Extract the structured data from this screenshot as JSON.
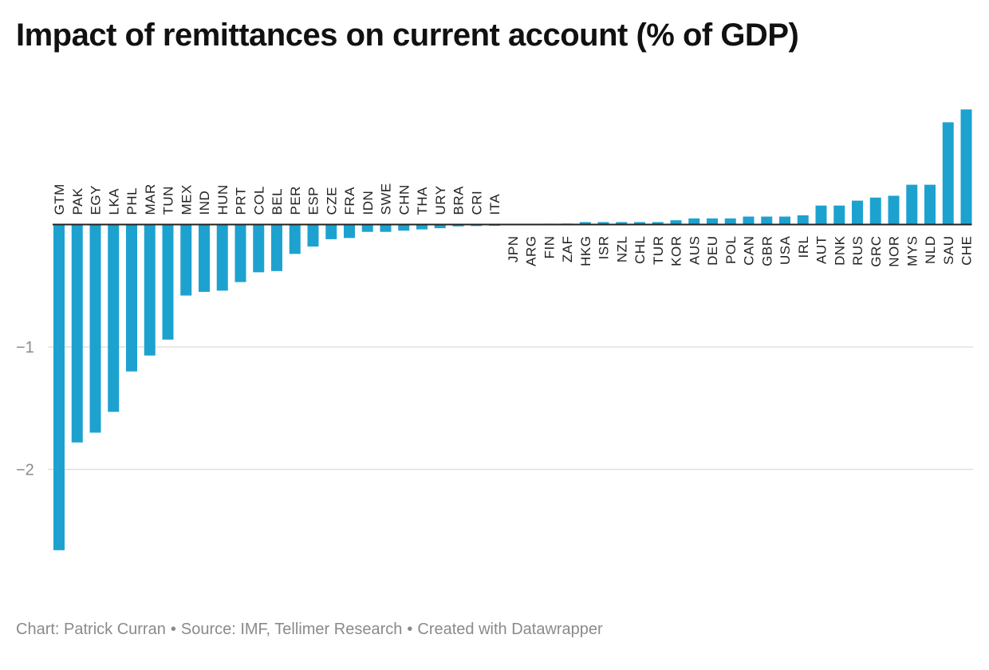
{
  "title": "Impact of remittances on current account (% of GDP)",
  "footer": {
    "chart_credit": "Chart: Patrick Curran",
    "source": "Source: IMF, Tellimer Research",
    "created_with": "Created with Datawrapper",
    "separator": "•"
  },
  "colors": {
    "bar": "#1da2d0",
    "gridline": "#e0e0e0",
    "zero_line": "#222222",
    "tick_label": "#8a8a8a",
    "category_label": "#222222"
  },
  "chart_data": {
    "type": "bar",
    "title": "Impact of remittances on current account (% of GDP)",
    "xlabel": "",
    "ylabel": "",
    "ylim": [
      -2.8,
      1.05
    ],
    "grid": true,
    "orientation": "vertical",
    "category_label_rotation": "vertical",
    "y_ticks": [
      {
        "value": -1,
        "label": "−1"
      },
      {
        "value": -2,
        "label": "−2"
      }
    ],
    "categories": [
      "GTM",
      "PAK",
      "EGY",
      "LKA",
      "PHL",
      "MAR",
      "TUN",
      "MEX",
      "IND",
      "HUN",
      "PRT",
      "COL",
      "BEL",
      "PER",
      "ESP",
      "CZE",
      "FRA",
      "IDN",
      "SWE",
      "CHN",
      "THA",
      "URY",
      "BRA",
      "CRI",
      "ITA",
      "JPN",
      "ARG",
      "FIN",
      "ZAF",
      "HKG",
      "ISR",
      "NZL",
      "CHL",
      "TUR",
      "KOR",
      "AUS",
      "DEU",
      "POL",
      "CAN",
      "GBR",
      "USA",
      "IRL",
      "AUT",
      "DNK",
      "RUS",
      "GRC",
      "NOR",
      "MYS",
      "NLD",
      "SAU",
      "CHE"
    ],
    "values": [
      -2.66,
      -1.78,
      -1.7,
      -1.53,
      -1.2,
      -1.07,
      -0.94,
      -0.58,
      -0.55,
      -0.54,
      -0.47,
      -0.39,
      -0.38,
      -0.24,
      -0.18,
      -0.12,
      -0.11,
      -0.06,
      -0.06,
      -0.05,
      -0.04,
      -0.03,
      -0.015,
      -0.012,
      -0.01,
      0.0,
      0.005,
      0.007,
      0.008,
      0.02,
      0.02,
      0.02,
      0.02,
      0.02,
      0.035,
      0.05,
      0.05,
      0.05,
      0.065,
      0.065,
      0.065,
      0.075,
      0.155,
      0.155,
      0.195,
      0.22,
      0.235,
      0.325,
      0.325,
      0.835,
      0.94
    ]
  }
}
